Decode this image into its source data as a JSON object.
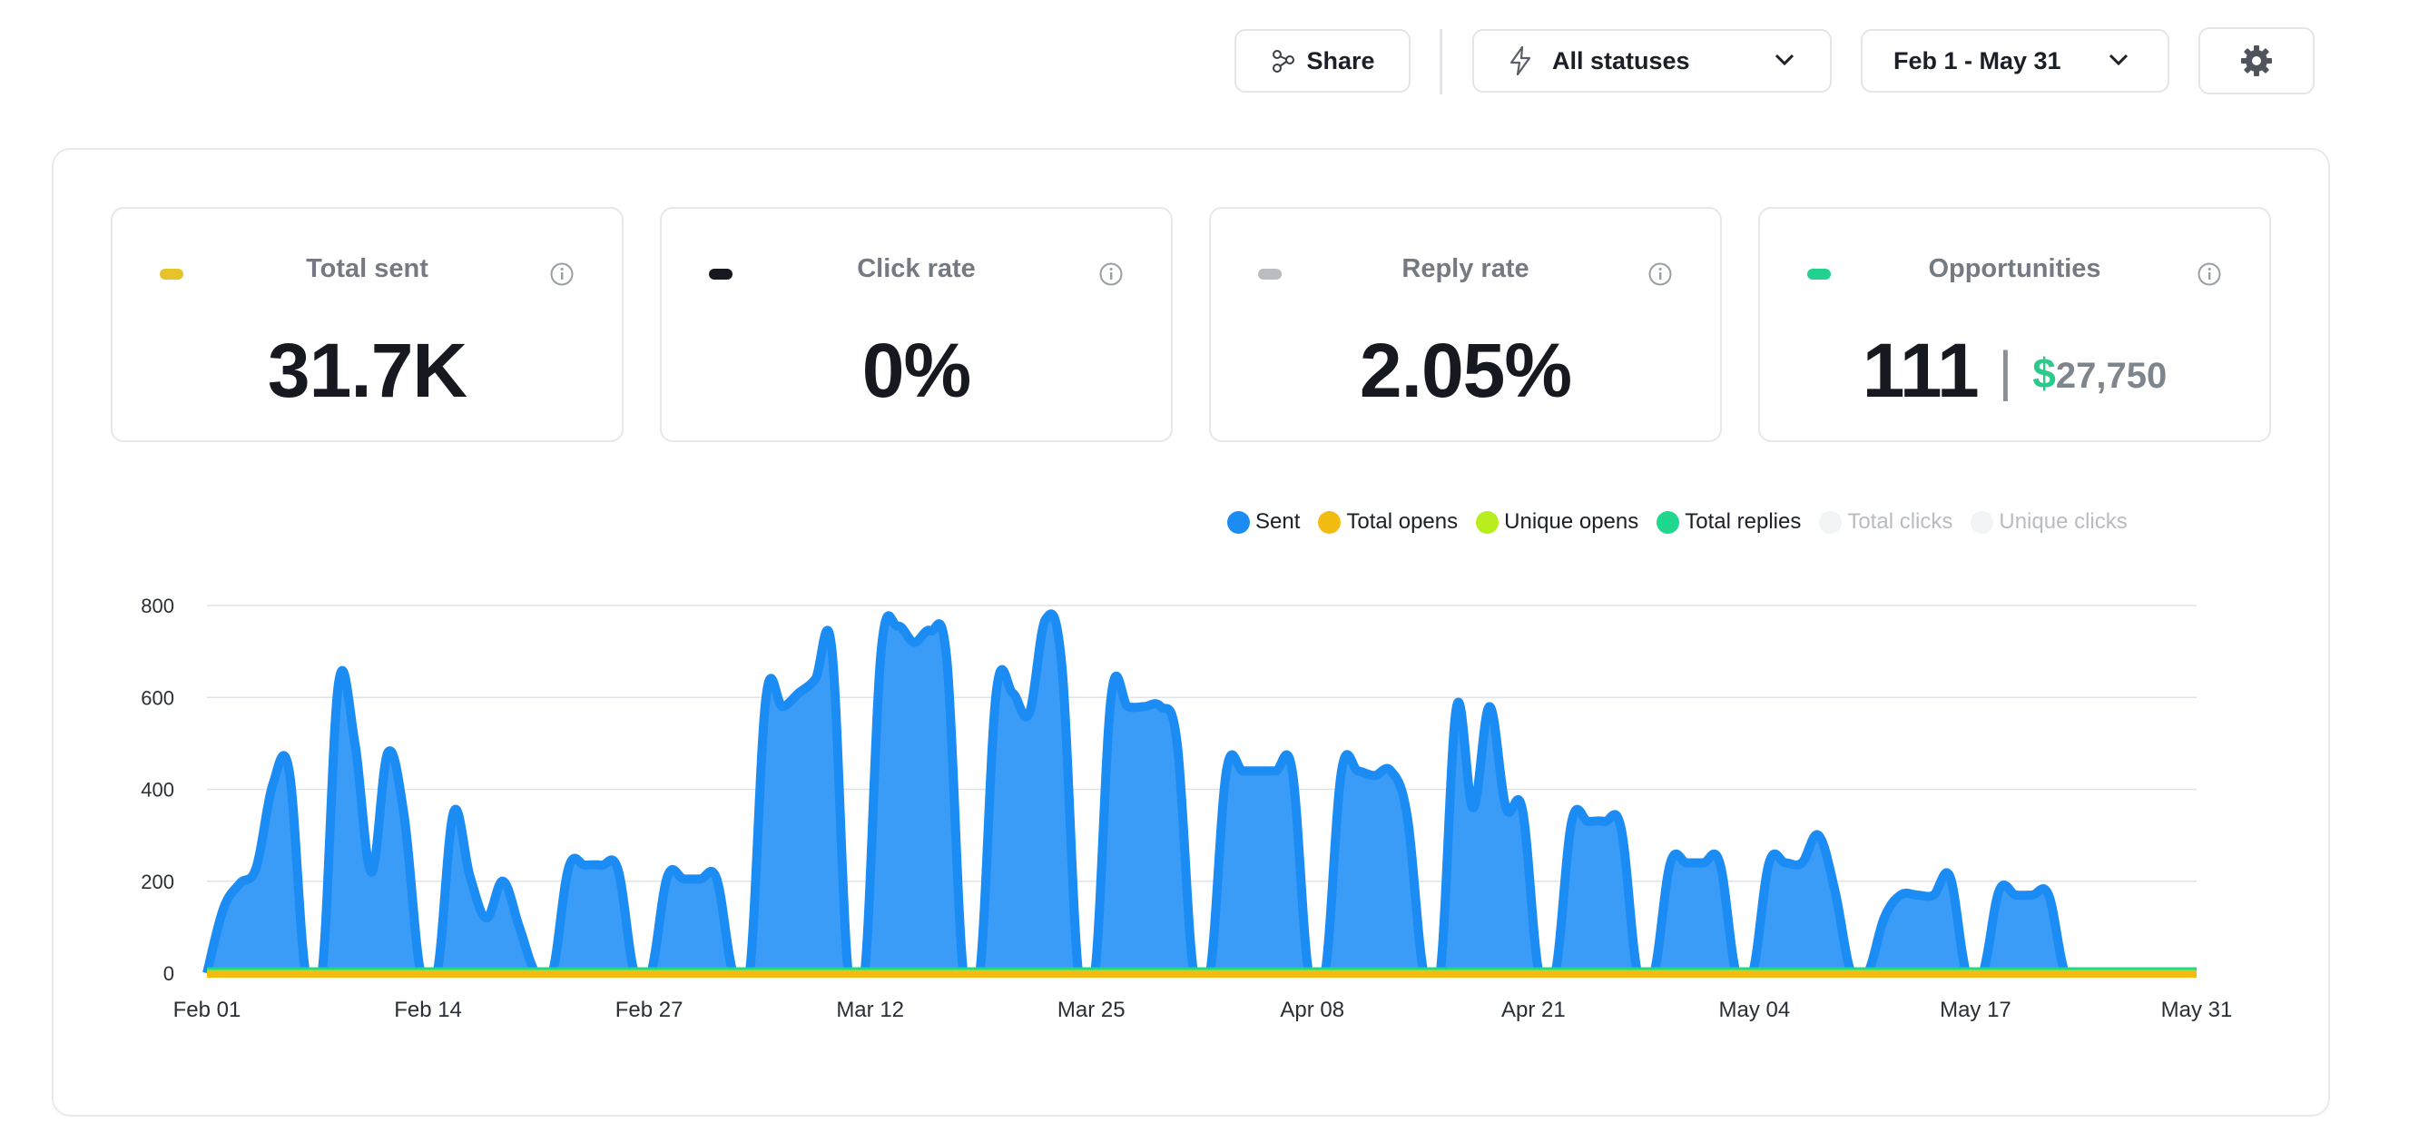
{
  "toolbar": {
    "share_label": "Share",
    "status_select_value": "All statuses",
    "date_range_value": "Feb 1 - May 31",
    "settings_icon": "gear-icon"
  },
  "metrics": [
    {
      "label": "Total sent",
      "value": "31.7K",
      "indicator_color": "#e7c32a"
    },
    {
      "label": "Click rate",
      "value": "0%",
      "indicator_color": "#16191f"
    },
    {
      "label": "Reply rate",
      "value": "2.05%",
      "indicator_color": "#b9bcc1"
    },
    {
      "label": "Opportunities",
      "value": "111",
      "separator": "|",
      "currency_symbol": "$",
      "amount": "27,750",
      "indicator_color": "#22d18f"
    }
  ],
  "legend": [
    {
      "name": "Sent",
      "color": "#1a8cf4",
      "active": true
    },
    {
      "name": "Total opens",
      "color": "#f3bc12",
      "active": true
    },
    {
      "name": "Unique opens",
      "color": "#b8ee1e",
      "active": true
    },
    {
      "name": "Total replies",
      "color": "#1fd88e",
      "active": true
    },
    {
      "name": "Total clicks",
      "color": "#f2f3f4",
      "active": false
    },
    {
      "name": "Unique clicks",
      "color": "#f2f3f4",
      "active": false
    }
  ],
  "chart_data": {
    "type": "area",
    "x_ticks": [
      "Feb 01",
      "Feb 14",
      "Feb 27",
      "Mar 12",
      "Mar 25",
      "Apr 08",
      "Apr 21",
      "May 04",
      "May 17",
      "May 31"
    ],
    "y_ticks": [
      "0",
      "200",
      "400",
      "600",
      "800"
    ],
    "ylim": [
      0,
      800
    ],
    "x_start": "2024-02-01",
    "grid": true,
    "legend_position": "top-right",
    "series": [
      {
        "name": "Sent",
        "color": "#1a8cf4",
        "values": [
          0,
          140,
          195,
          230,
          410,
          440,
          0,
          0,
          630,
          500,
          220,
          480,
          340,
          0,
          0,
          350,
          210,
          120,
          200,
          100,
          0,
          0,
          230,
          235,
          235,
          225,
          0,
          0,
          210,
          205,
          205,
          205,
          0,
          0,
          600,
          580,
          610,
          640,
          705,
          0,
          0,
          700,
          755,
          720,
          745,
          680,
          0,
          0,
          610,
          610,
          565,
          770,
          665,
          0,
          0,
          605,
          580,
          580,
          580,
          500,
          0,
          0,
          440,
          440,
          440,
          440,
          440,
          0,
          0,
          440,
          440,
          430,
          440,
          340,
          0,
          0,
          580,
          360,
          580,
          360,
          355,
          0,
          0,
          330,
          330,
          330,
          315,
          0,
          0,
          240,
          240,
          240,
          240,
          0,
          0,
          240,
          240,
          240,
          300,
          180,
          0,
          0,
          120,
          170,
          170,
          170,
          210,
          0,
          0,
          180,
          170,
          170,
          170,
          0,
          0,
          0,
          0,
          0,
          0,
          0,
          0,
          0
        ]
      },
      {
        "name": "Total opens",
        "color": "#f3bc12",
        "values": []
      },
      {
        "name": "Unique opens",
        "color": "#b8ee1e",
        "values": []
      },
      {
        "name": "Total replies",
        "color": "#1fd88e",
        "values": []
      }
    ]
  }
}
